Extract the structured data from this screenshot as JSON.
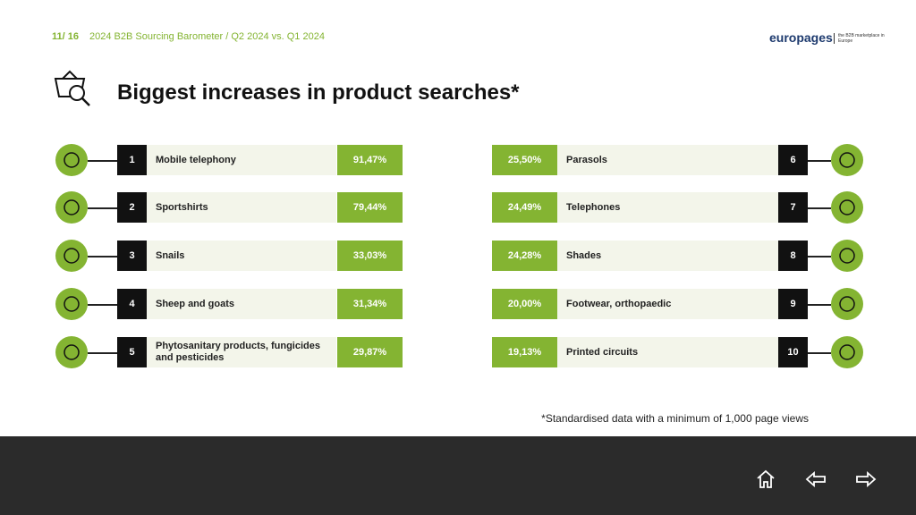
{
  "header": {
    "page": "11/ 16",
    "subtitle": "2024 B2B Sourcing Barometer / Q2 2024 vs. Q1 2024",
    "brand": "europages",
    "tagline": "the B2B marketplace in Europe"
  },
  "title": "Biggest increases in product searches*",
  "items": [
    {
      "rank": 1,
      "name": "Mobile telephony",
      "value": "91,47%"
    },
    {
      "rank": 2,
      "name": "Sportshirts",
      "value": "79,44%"
    },
    {
      "rank": 3,
      "name": "Snails",
      "value": "33,03%"
    },
    {
      "rank": 4,
      "name": "Sheep and goats",
      "value": "31,34%"
    },
    {
      "rank": 5,
      "name": "Phytosanitary products, fungicides and pesticides",
      "value": "29,87%"
    },
    {
      "rank": 6,
      "name": "Parasols",
      "value": "25,50%"
    },
    {
      "rank": 7,
      "name": "Telephones",
      "value": "24,49%"
    },
    {
      "rank": 8,
      "name": "Shades",
      "value": "24,28%"
    },
    {
      "rank": 9,
      "name": "Footwear, orthopaedic",
      "value": "20,00%"
    },
    {
      "rank": 10,
      "name": "Printed circuits",
      "value": "19,13%"
    }
  ],
  "footnote": "*Standardised data with a minimum of 1,000 page views"
}
